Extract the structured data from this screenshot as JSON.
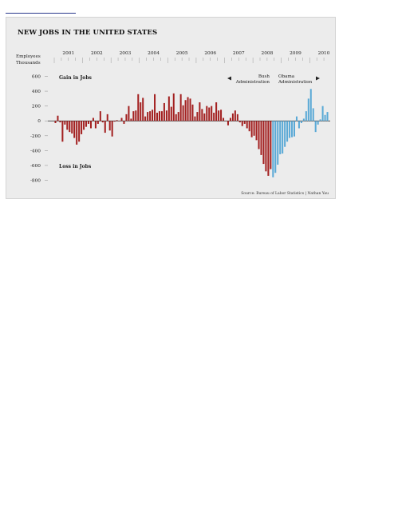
{
  "chart_data": {
    "type": "bar",
    "title": "NEW JOBS IN THE UNITED STATES",
    "ylabel": "Employees Thousands",
    "ylabel_lines": [
      "Employees",
      "Thousands"
    ],
    "ylim": [
      -800,
      600
    ],
    "yticks": [
      600,
      400,
      200,
      0,
      -200,
      -400,
      -600,
      -800
    ],
    "ytick_labels": [
      "600",
      "400",
      "200",
      "0",
      "-200",
      "-400",
      "-600",
      "-800"
    ],
    "year_labels": [
      "2001",
      "2002",
      "2003",
      "2004",
      "2005",
      "2006",
      "2007",
      "2008",
      "2009",
      "2010"
    ],
    "start_year": 2001,
    "annotations": {
      "gain": "Gain in Jobs",
      "loss": "Loss in Jobs",
      "bush": "Bush Administration",
      "bush_lines": [
        "Bush",
        "Administration"
      ],
      "obama": "Obama Administration",
      "obama_lines": [
        "Obama",
        "Administration"
      ]
    },
    "source": "Source: Bureau of Labor Statistics | Nathan Yau",
    "colors": {
      "bush": "#a32020",
      "obama": "#5aa9d6"
    },
    "series": [
      {
        "name": "Bush Administration",
        "values": [
          -30,
          70,
          -20,
          -280,
          -50,
          -120,
          -150,
          -170,
          -230,
          -320,
          -280,
          -180,
          -120,
          -80,
          -40,
          -100,
          40,
          -100,
          -40,
          130,
          -20,
          -160,
          90,
          -130,
          -210,
          -10,
          10,
          0,
          40,
          -40,
          90,
          200,
          30,
          130,
          140,
          360,
          250,
          310,
          60,
          120,
          130,
          150,
          360,
          110,
          130,
          130,
          240,
          140,
          330,
          190,
          370,
          90,
          120,
          360,
          210,
          280,
          320,
          300,
          220,
          60,
          120,
          250,
          160,
          100,
          200,
          180,
          200,
          110,
          250,
          140,
          150,
          40,
          0,
          -60,
          40,
          100,
          140,
          90,
          -20,
          -70,
          -40,
          -100,
          -140,
          -220,
          -200,
          -260,
          -380,
          -460,
          -580,
          -680,
          -740,
          -650
        ]
      },
      {
        "name": "Obama Administration",
        "values": [
          -760,
          -700,
          -590,
          -450,
          -440,
          -350,
          -280,
          -230,
          -220,
          -210,
          60,
          -100,
          -30,
          30,
          130,
          300,
          430,
          170,
          -150,
          -50,
          20,
          200,
          80,
          120
        ]
      }
    ]
  }
}
